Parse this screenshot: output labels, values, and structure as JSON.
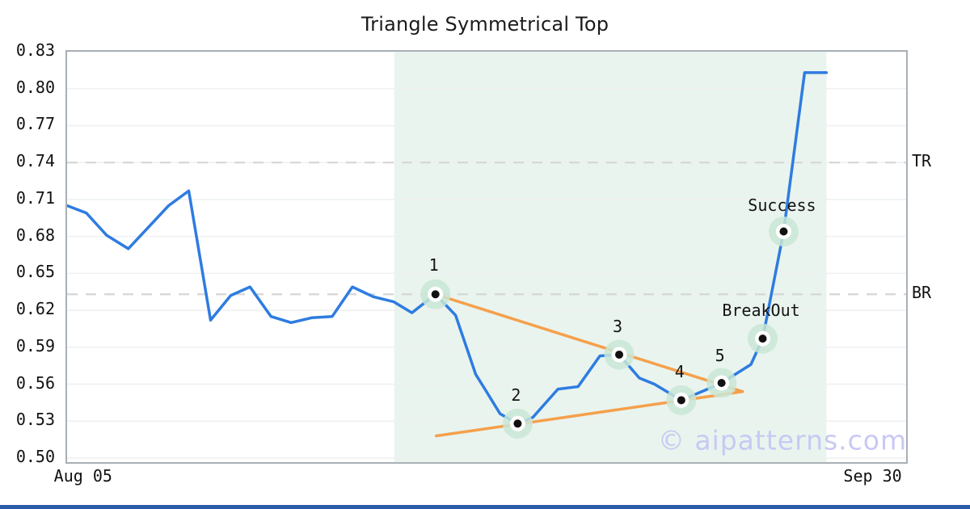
{
  "chart_data": {
    "type": "line",
    "title": "Triangle Symmetrical Top",
    "watermark": "© aipatterns.com",
    "ylim": [
      0.4967,
      0.83
    ],
    "yticks": [
      "0.83",
      "0.80",
      "0.77",
      "0.74",
      "0.71",
      "0.68",
      "0.65",
      "0.62",
      "0.59",
      "0.56",
      "0.53",
      "0.50"
    ],
    "xticks": [
      {
        "label": "Aug 05",
        "x": 0.021
      },
      {
        "label": "Sep 30",
        "x": 0.962
      }
    ],
    "grid": "horizontal",
    "legend": "none",
    "series": {
      "name": "price",
      "points": [
        [
          0.0,
          0.705
        ],
        [
          0.023,
          0.699
        ],
        [
          0.047,
          0.681
        ],
        [
          0.073,
          0.67
        ],
        [
          0.121,
          0.705
        ],
        [
          0.145,
          0.717
        ],
        [
          0.171,
          0.612
        ],
        [
          0.195,
          0.632
        ],
        [
          0.218,
          0.639
        ],
        [
          0.243,
          0.615
        ],
        [
          0.267,
          0.61
        ],
        [
          0.292,
          0.614
        ],
        [
          0.316,
          0.615
        ],
        [
          0.34,
          0.639
        ],
        [
          0.365,
          0.631
        ],
        [
          0.389,
          0.627
        ],
        [
          0.411,
          0.618
        ],
        [
          0.439,
          0.633
        ],
        [
          0.463,
          0.616
        ],
        [
          0.487,
          0.568
        ],
        [
          0.498,
          0.556
        ],
        [
          0.516,
          0.536
        ],
        [
          0.537,
          0.528
        ],
        [
          0.555,
          0.533
        ],
        [
          0.585,
          0.556
        ],
        [
          0.609,
          0.558
        ],
        [
          0.635,
          0.583
        ],
        [
          0.658,
          0.584
        ],
        [
          0.682,
          0.565
        ],
        [
          0.7,
          0.56
        ],
        [
          0.732,
          0.547
        ],
        [
          0.76,
          0.555
        ],
        [
          0.78,
          0.561
        ],
        [
          0.815,
          0.576
        ],
        [
          0.829,
          0.597
        ],
        [
          0.854,
          0.684
        ],
        [
          0.879,
          0.813
        ],
        [
          0.905,
          0.813
        ]
      ]
    },
    "levels": [
      {
        "label": "TR",
        "value": 0.74
      },
      {
        "label": "BR",
        "value": 0.633
      }
    ],
    "trendlines": [
      {
        "from": [
          0.439,
          0.633
        ],
        "to": [
          0.805,
          0.554
        ]
      },
      {
        "from": [
          0.44,
          0.518
        ],
        "to": [
          0.805,
          0.554
        ]
      }
    ],
    "pattern_zone": {
      "x_from": 0.39,
      "x_to": 0.905
    },
    "markers": [
      {
        "label": "1",
        "x": 0.439,
        "y": 0.633,
        "dy": -34
      },
      {
        "label": "2",
        "x": 0.537,
        "y": 0.528,
        "dy": -33
      },
      {
        "label": "3",
        "x": 0.658,
        "y": 0.584,
        "dy": -33
      },
      {
        "label": "4",
        "x": 0.732,
        "y": 0.547,
        "dy": -33
      },
      {
        "label": "5",
        "x": 0.78,
        "y": 0.561,
        "dy": -32
      },
      {
        "label": "BreakOut",
        "x": 0.829,
        "y": 0.597,
        "dy": -33
      },
      {
        "label": "Success",
        "x": 0.854,
        "y": 0.684,
        "dy": -31
      }
    ],
    "colors": {
      "line": "#2e7ce0",
      "trend": "#f5a04c",
      "zone": "#e9f4ee",
      "halo": "#c9e6d6",
      "grid": "#eef0f1",
      "dash": "#d6d6d6",
      "spine": "#a9b0b6",
      "text": "#141414",
      "watermark": "#c8c9f3",
      "bottom_bar": "#2a5ca8"
    }
  }
}
